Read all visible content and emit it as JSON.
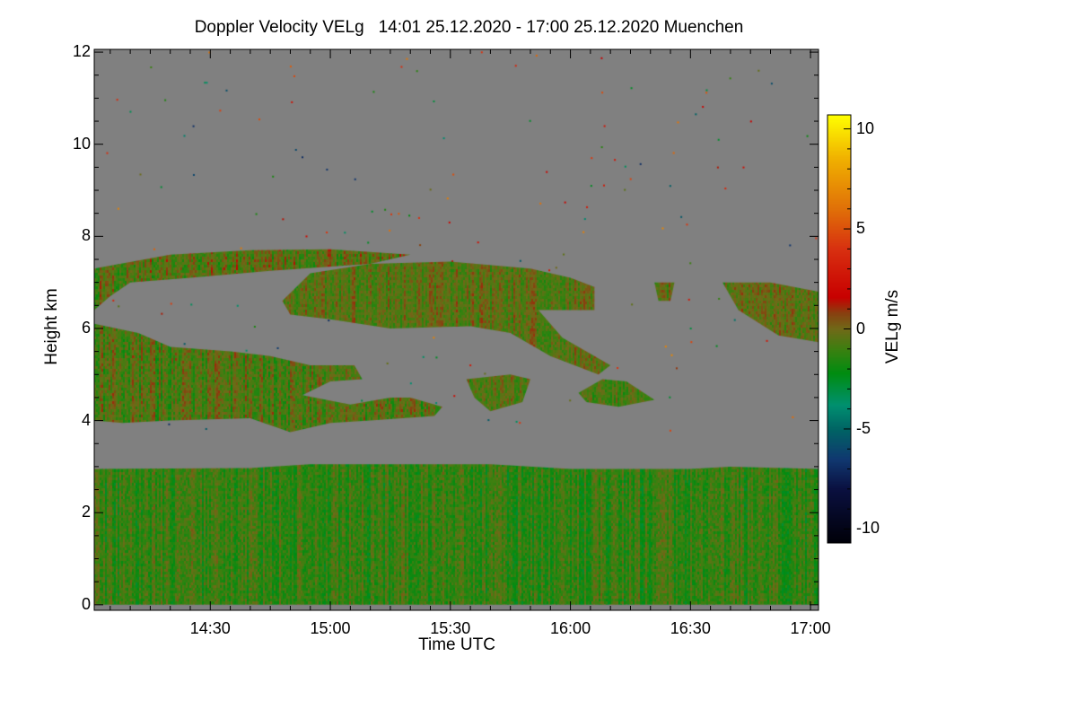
{
  "chart_data": {
    "type": "heatmap",
    "title": "Doppler Velocity VELg   14:01 25.12.2020 - 17:00 25.12.2020 Muenchen",
    "xlabel": "Time UTC",
    "ylabel": "Height km",
    "colorbar_label": "VELg m/s",
    "x_unit": "minutes after 14:00 UTC",
    "xlim": [
      1,
      182
    ],
    "ylim": [
      -0.12,
      12.06
    ],
    "clim": [
      -10.7,
      10.7
    ],
    "x_ticks": [
      {
        "value": 30,
        "label": "14:30"
      },
      {
        "value": 60,
        "label": "15:00"
      },
      {
        "value": 90,
        "label": "15:30"
      },
      {
        "value": 120,
        "label": "16:00"
      },
      {
        "value": 150,
        "label": "16:30"
      },
      {
        "value": 180,
        "label": "17:00"
      }
    ],
    "y_ticks": [
      {
        "value": 0,
        "label": "0"
      },
      {
        "value": 2,
        "label": "2"
      },
      {
        "value": 4,
        "label": "4"
      },
      {
        "value": 6,
        "label": "6"
      },
      {
        "value": 8,
        "label": "8"
      },
      {
        "value": 10,
        "label": "10"
      },
      {
        "value": 12,
        "label": "12"
      }
    ],
    "colorbar_ticks": [
      {
        "value": 10,
        "label": "10"
      },
      {
        "value": 5,
        "label": "5"
      },
      {
        "value": 0,
        "label": "0"
      },
      {
        "value": -5,
        "label": "-5"
      },
      {
        "value": -10,
        "label": "-10"
      }
    ],
    "colormap": [
      [
        -10.7,
        "#000008"
      ],
      [
        -8,
        "#0a1040"
      ],
      [
        -6.5,
        "#103870"
      ],
      [
        -5,
        "#006464"
      ],
      [
        -3.8,
        "#009070"
      ],
      [
        -2.2,
        "#008c10"
      ],
      [
        -1,
        "#3c8010"
      ],
      [
        0,
        "#706a18"
      ],
      [
        0.8,
        "#884010"
      ],
      [
        1.6,
        "#c80000"
      ],
      [
        4,
        "#d83010"
      ],
      [
        6,
        "#e07008"
      ],
      [
        8.5,
        "#f0b000"
      ],
      [
        10.7,
        "#ffff00"
      ]
    ],
    "background_color": "#808080",
    "regions": [
      {
        "name": "boundary-layer",
        "mean_velocity": -1.2,
        "spread": 1.1,
        "polygon": [
          [
            1,
            0
          ],
          [
            1,
            2.95
          ],
          [
            40,
            2.97
          ],
          [
            55,
            3.05
          ],
          [
            100,
            3.05
          ],
          [
            120,
            2.95
          ],
          [
            150,
            2.95
          ],
          [
            160,
            3.0
          ],
          [
            182,
            2.95
          ],
          [
            182,
            0
          ]
        ]
      },
      {
        "name": "mid-cloud-lower",
        "mean_velocity": -0.6,
        "spread": 1.2,
        "polygon": [
          [
            1,
            6.1
          ],
          [
            12,
            5.9
          ],
          [
            20,
            5.6
          ],
          [
            35,
            5.5
          ],
          [
            45,
            5.4
          ],
          [
            55,
            5.2
          ],
          [
            66,
            5.2
          ],
          [
            68,
            4.9
          ],
          [
            60,
            4.85
          ],
          [
            53,
            4.55
          ],
          [
            65,
            4.35
          ],
          [
            75,
            4.5
          ],
          [
            80,
            4.5
          ],
          [
            88,
            4.3
          ],
          [
            86,
            4.1
          ],
          [
            70,
            4.0
          ],
          [
            60,
            3.95
          ],
          [
            50,
            3.75
          ],
          [
            40,
            4.05
          ],
          [
            20,
            4.0
          ],
          [
            8,
            3.95
          ],
          [
            1,
            4.0
          ]
        ]
      },
      {
        "name": "upper-cloud-thin",
        "mean_velocity": -0.3,
        "spread": 1.3,
        "polygon": [
          [
            1,
            7.3
          ],
          [
            20,
            7.6
          ],
          [
            40,
            7.7
          ],
          [
            60,
            7.72
          ],
          [
            80,
            7.6
          ],
          [
            70,
            7.4
          ],
          [
            45,
            7.25
          ],
          [
            25,
            7.1
          ],
          [
            10,
            7.0
          ],
          [
            5,
            6.7
          ],
          [
            1,
            6.4
          ]
        ]
      },
      {
        "name": "upper-cloud-main",
        "mean_velocity": -0.4,
        "spread": 1.0,
        "polygon": [
          [
            48,
            6.6
          ],
          [
            55,
            7.2
          ],
          [
            70,
            7.4
          ],
          [
            90,
            7.45
          ],
          [
            110,
            7.3
          ],
          [
            120,
            7.1
          ],
          [
            126,
            6.9
          ],
          [
            126,
            6.4
          ],
          [
            112,
            6.4
          ],
          [
            118,
            5.8
          ],
          [
            130,
            5.2
          ],
          [
            127,
            5.0
          ],
          [
            115,
            5.4
          ],
          [
            105,
            5.9
          ],
          [
            95,
            6.05
          ],
          [
            75,
            6.0
          ],
          [
            60,
            6.2
          ],
          [
            50,
            6.3
          ]
        ]
      },
      {
        "name": "fallstreak-1530",
        "mean_velocity": -0.5,
        "spread": 1.0,
        "polygon": [
          [
            94,
            4.9
          ],
          [
            105,
            5.0
          ],
          [
            110,
            4.9
          ],
          [
            108,
            4.4
          ],
          [
            100,
            4.2
          ],
          [
            96,
            4.5
          ]
        ]
      },
      {
        "name": "fallstreak-1600",
        "mean_velocity": -0.7,
        "spread": 0.9,
        "polygon": [
          [
            122,
            4.6
          ],
          [
            128,
            4.9
          ],
          [
            134,
            4.85
          ],
          [
            141,
            4.45
          ],
          [
            132,
            4.3
          ],
          [
            124,
            4.4
          ]
        ]
      },
      {
        "name": "cloud-1620",
        "mean_velocity": -0.3,
        "spread": 1.0,
        "polygon": [
          [
            141,
            7.0
          ],
          [
            146,
            7.0
          ],
          [
            145,
            6.6
          ],
          [
            142,
            6.6
          ]
        ]
      },
      {
        "name": "cloud-1645",
        "mean_velocity": -0.4,
        "spread": 1.0,
        "polygon": [
          [
            158,
            7.0
          ],
          [
            170,
            7.0
          ],
          [
            182,
            6.8
          ],
          [
            182,
            5.7
          ],
          [
            172,
            5.85
          ],
          [
            162,
            6.4
          ]
        ]
      }
    ]
  }
}
